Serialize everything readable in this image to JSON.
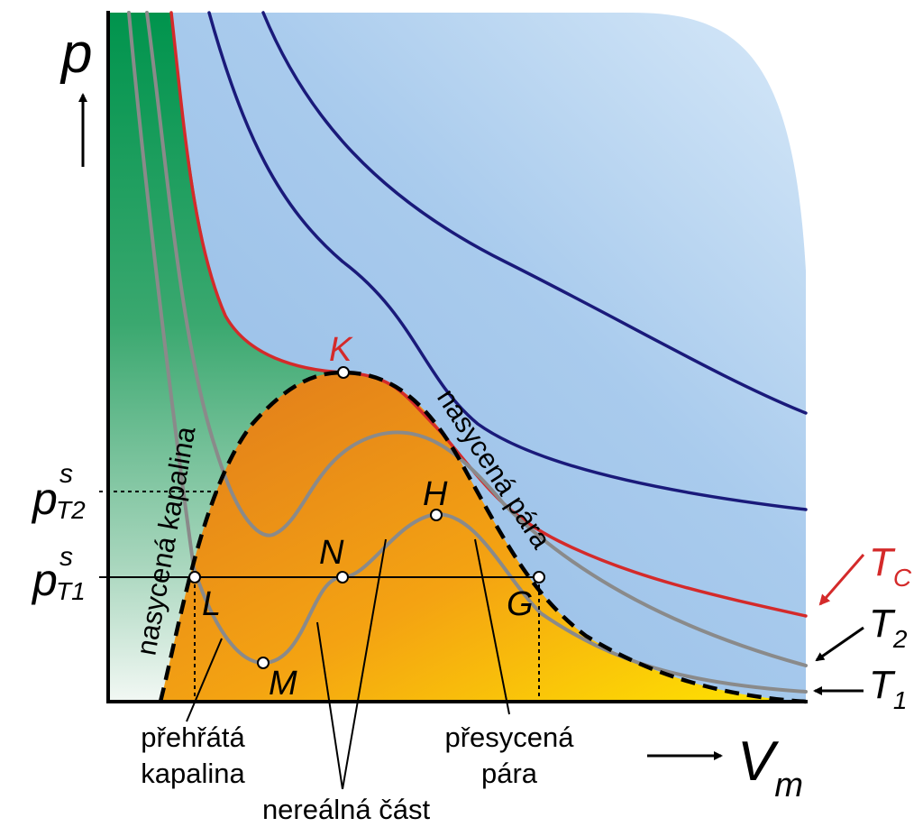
{
  "axes": {
    "y_symbol": "p",
    "x_symbol": "V",
    "x_subscript": "m"
  },
  "pressure_labels": [
    {
      "symbol": "p",
      "sup": "s",
      "sub": "T2"
    },
    {
      "symbol": "p",
      "sup": "s",
      "sub": "T1"
    }
  ],
  "curve_labels": {
    "tc_main": "T",
    "tc_sub": "C",
    "t2_main": "T",
    "t2_sub": "2",
    "t1_main": "T",
    "t1_sub": "1"
  },
  "points": {
    "K": "K",
    "H": "H",
    "N": "N",
    "L": "L",
    "G": "G",
    "M": "M"
  },
  "region_labels": {
    "saturated_liquid": "nasycená kapalina",
    "saturated_vapor": "nasycená pára"
  },
  "annotations": {
    "superheated_line1": "přehřátá",
    "superheated_line2": "kapalina",
    "supersaturated_line1": "přesycená",
    "supersaturated_line2": "pára",
    "unreal_part": "nereálná část"
  },
  "colors": {
    "critical_isotherm": "#d42a2a",
    "high_isotherms": "#1a1a7a",
    "low_isotherms": "#8a8a8a",
    "liquid_region": "#009a55",
    "vapor_region": "#9cc3e8",
    "two_phase_region": "#f0a020"
  }
}
